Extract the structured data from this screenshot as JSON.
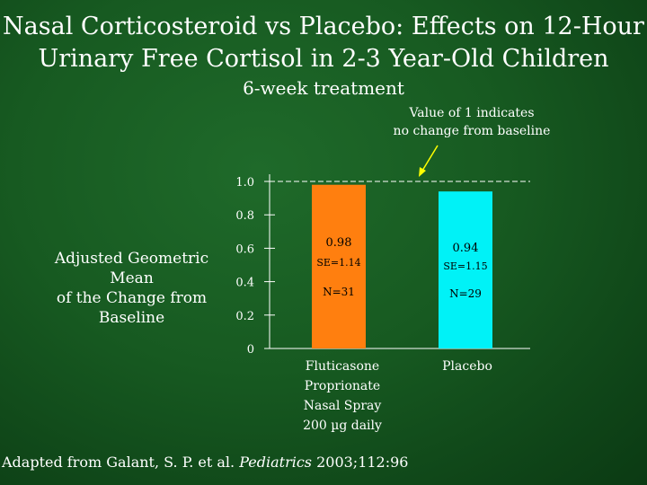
{
  "header": {
    "title_line1": "Nasal Corticosteroid vs Placebo: Effects on 12-Hour",
    "title_line2": "Urinary Free Cortisol in 2-3 Year-Old Children",
    "subtitle": "6-week treatment"
  },
  "annotation": {
    "line1": "Value of 1 indicates",
    "line2": "no change from baseline"
  },
  "axis": {
    "ylabel_line1": "Adjusted Geometric Mean",
    "ylabel_line2": "of the Change from Baseline"
  },
  "source": {
    "prefix": "Adapted from Galant, S. P. et al. ",
    "journal": "Pediatrics",
    "suffix": " 2003;112:96"
  },
  "colors": {
    "fluticasone": "#ff7f0f",
    "placebo": "#00f2f7",
    "axis": "#ffffff",
    "arrow": "#ffff00"
  },
  "chart_data": {
    "type": "bar",
    "title": "Nasal Corticosteroid vs Placebo: Effects on 12-Hour Urinary Free Cortisol in 2-3 Year-Old Children",
    "ylabel": "Adjusted Geometric Mean of the Change from Baseline",
    "xlabel": "",
    "ylim": [
      0,
      1.0
    ],
    "ticks": [
      {
        "value": 0,
        "label": "0"
      },
      {
        "value": 0.2,
        "label": "0.2"
      },
      {
        "value": 0.4,
        "label": "0.4"
      },
      {
        "value": 0.6,
        "label": "0.6"
      },
      {
        "value": 0.8,
        "label": "0.8"
      },
      {
        "value": 1.0,
        "label": "1.0"
      }
    ],
    "reference_line": {
      "value": 1.0,
      "style": "dashed"
    },
    "categories": [
      [
        "Fluticasone",
        "Proprionate",
        "Nasal Spray",
        "200 µg daily"
      ],
      [
        "Placebo"
      ]
    ],
    "values": [
      0.98,
      0.94
    ],
    "value_labels": [
      "0.98",
      "0.94"
    ],
    "se_labels": [
      "SE=1.14",
      "SE=1.15"
    ],
    "n_labels": [
      "N=31",
      "N=29"
    ],
    "grid": false
  }
}
